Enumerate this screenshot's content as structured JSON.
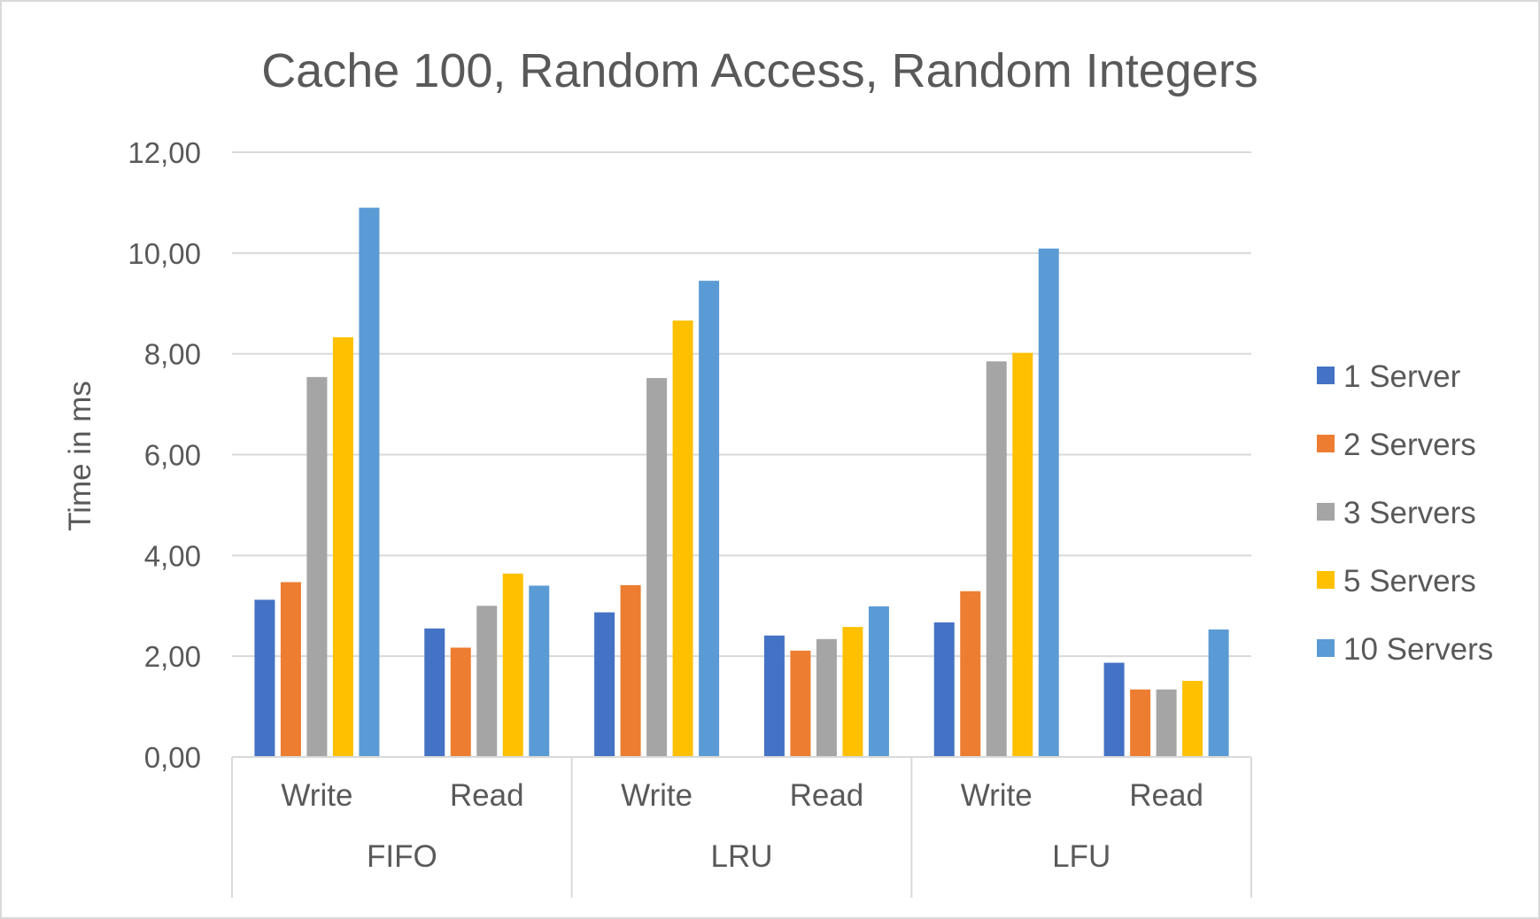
{
  "chart_data": {
    "type": "bar",
    "title": "Cache 100, Random Access, Random Integers",
    "xlabel": "",
    "ylabel": "Time in ms",
    "ylim": [
      0,
      12
    ],
    "yticks": [
      "0,00",
      "2,00",
      "4,00",
      "6,00",
      "8,00",
      "10,00",
      "12,00"
    ],
    "groups": [
      {
        "name": "FIFO",
        "categories": [
          "Write",
          "Read"
        ]
      },
      {
        "name": "LRU",
        "categories": [
          "Write",
          "Read"
        ]
      },
      {
        "name": "LFU",
        "categories": [
          "Write",
          "Read"
        ]
      }
    ],
    "series": [
      {
        "name": "1 Server",
        "color": "#4472C4",
        "values": [
          3.12,
          2.55,
          2.87,
          2.41,
          2.67,
          1.87
        ]
      },
      {
        "name": "2 Servers",
        "color": "#ED7D31",
        "values": [
          3.47,
          2.17,
          3.41,
          2.11,
          3.29,
          1.34
        ]
      },
      {
        "name": "3 Servers",
        "color": "#A5A5A5",
        "values": [
          7.54,
          3.0,
          7.52,
          2.34,
          7.85,
          1.34
        ]
      },
      {
        "name": "5 Servers",
        "color": "#FFC000",
        "values": [
          8.33,
          3.64,
          8.66,
          2.58,
          8.02,
          1.51
        ]
      },
      {
        "name": "10 Servers",
        "color": "#5B9BD5",
        "values": [
          10.9,
          3.4,
          9.45,
          2.99,
          10.09,
          2.53
        ]
      }
    ],
    "grid": true,
    "legend": "right"
  },
  "colors": {
    "gridline": "#d9d9d9",
    "text": "#595959",
    "border": "#d9d9d9"
  }
}
